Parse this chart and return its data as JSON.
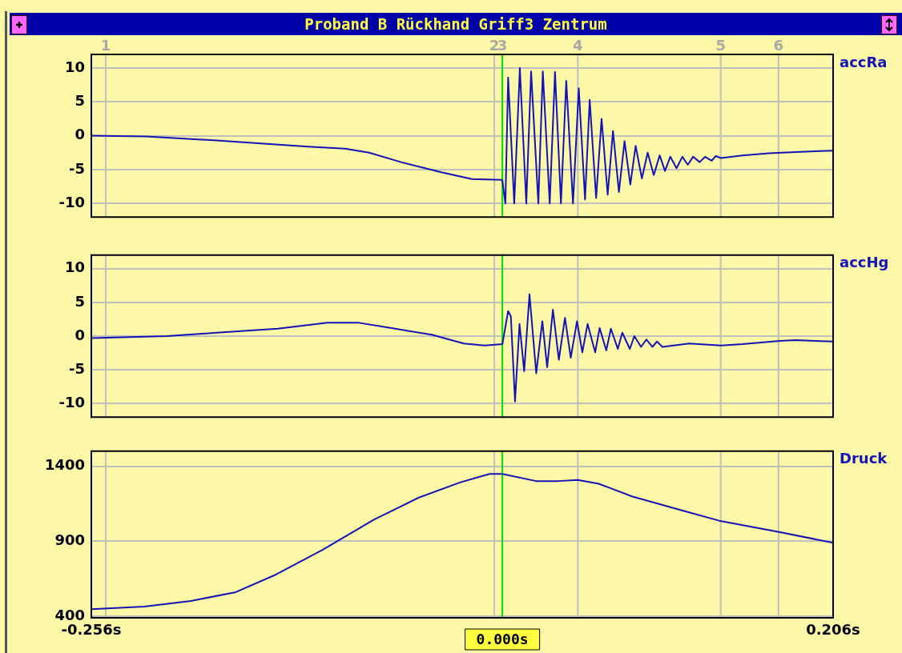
{
  "chart_data": [
    {
      "type": "line",
      "title": "Proband B Rückhand Griff3 Zentrum",
      "xlim": [
        -0.256,
        0.206
      ],
      "tick_labels": "y",
      "ylim": [
        -12,
        12
      ],
      "yticks": [
        -10,
        -5,
        0,
        5,
        10
      ],
      "grid": "y",
      "annotations": [
        "1",
        "2",
        "3",
        "4",
        "5",
        "6"
      ],
      "ref_lines": [
        {
          "axis": "x",
          "value": -0.247,
          "color": "#c0c0c0"
        },
        {
          "axis": "x",
          "value": -0.005,
          "color": "#c0c0c0"
        },
        {
          "axis": "x",
          "value": 0.0,
          "color": "#c0c0c0"
        },
        {
          "axis": "x",
          "value": 0.047,
          "color": "#c0c0c0"
        },
        {
          "axis": "x",
          "value": 0.136,
          "color": "#c0c0c0"
        },
        {
          "axis": "x",
          "value": 0.172,
          "color": "#c0c0c0"
        },
        {
          "axis": "x",
          "value": 0.0,
          "color": "#00e000"
        }
      ],
      "series": [
        {
          "name": "accRa",
          "color": "#1414b4",
          "x": [
            -0.256,
            -0.222,
            -0.178,
            -0.121,
            -0.098,
            -0.083,
            -0.063,
            -0.038,
            -0.019,
            -0.0005,
            0.0,
            0.0019,
            0.0036,
            0.0074,
            0.0109,
            0.0149,
            0.0179,
            0.0224,
            0.0252,
            0.0295,
            0.0328,
            0.0365,
            0.0398,
            0.044,
            0.0476,
            0.0515,
            0.0544,
            0.0584,
            0.0618,
            0.0656,
            0.0689,
            0.0726,
            0.0761,
            0.0797,
            0.083,
            0.0869,
            0.0905,
            0.0943,
            0.098,
            0.1013,
            0.1046,
            0.1085,
            0.1121,
            0.1155,
            0.1188,
            0.1229,
            0.1262,
            0.1304,
            0.1329,
            0.1362,
            0.1495,
            0.1662,
            0.1828,
            0.206
          ],
          "values": [
            0,
            -0.1,
            -0.7,
            -1.6,
            -1.9,
            -2.5,
            -3.9,
            -5.4,
            -6.4,
            -6.5,
            -6.6,
            -10.0,
            8.6,
            -10.0,
            10.0,
            -10.0,
            9.5,
            -10.0,
            9.5,
            -10.0,
            9.4,
            -10.0,
            8.1,
            -10.0,
            7.0,
            -9.4,
            5.3,
            -9.2,
            2.5,
            -8.7,
            0.7,
            -8.3,
            -0.8,
            -7.2,
            -1.5,
            -6.3,
            -2.5,
            -5.8,
            -2.9,
            -5.2,
            -3.1,
            -4.8,
            -3.1,
            -4.3,
            -3.1,
            -3.9,
            -3.1,
            -3.7,
            -3.0,
            -3.3,
            -2.9,
            -2.6,
            -2.4,
            -2.2
          ]
        }
      ]
    },
    {
      "type": "line",
      "xlim": [
        -0.256,
        0.206
      ],
      "tick_labels": "y",
      "ylim": [
        -12,
        12
      ],
      "yticks": [
        -10,
        -5,
        0,
        5,
        10
      ],
      "grid": "y",
      "ref_lines": [
        {
          "axis": "x",
          "value": -0.247,
          "color": "#c0c0c0"
        },
        {
          "axis": "x",
          "value": -0.005,
          "color": "#c0c0c0"
        },
        {
          "axis": "x",
          "value": 0.047,
          "color": "#c0c0c0"
        },
        {
          "axis": "x",
          "value": 0.136,
          "color": "#c0c0c0"
        },
        {
          "axis": "x",
          "value": 0.172,
          "color": "#c0c0c0"
        },
        {
          "axis": "x",
          "value": 0.0,
          "color": "#00e000"
        }
      ],
      "series": [
        {
          "name": "accHg",
          "color": "#1414b4",
          "x": [
            -0.256,
            -0.209,
            -0.178,
            -0.14,
            -0.109,
            -0.09,
            -0.072,
            -0.044,
            -0.024,
            -0.011,
            0.0,
            0.0036,
            0.0053,
            0.0079,
            0.0107,
            0.0136,
            0.0169,
            0.0211,
            0.0249,
            0.0279,
            0.0315,
            0.0352,
            0.039,
            0.0426,
            0.0465,
            0.0498,
            0.0531,
            0.0578,
            0.0606,
            0.0647,
            0.0676,
            0.0719,
            0.0747,
            0.0794,
            0.0822,
            0.0864,
            0.0897,
            0.0934,
            0.0963,
            0.0997,
            0.1163,
            0.1362,
            0.1495,
            0.1728,
            0.1828,
            0.206
          ],
          "values": [
            -0.3,
            0,
            0.5,
            1.1,
            2.0,
            2.0,
            1.3,
            0.2,
            -1.1,
            -1.4,
            -1.2,
            3.7,
            2.9,
            -9.7,
            1.8,
            -5.2,
            6.2,
            -5.5,
            2.2,
            -4.6,
            3.9,
            -3.5,
            2.7,
            -3.2,
            2.2,
            -2.4,
            1.8,
            -2.4,
            1.2,
            -2.1,
            1.1,
            -1.9,
            0.5,
            -1.9,
            0,
            -1.6,
            -0.5,
            -1.6,
            -0.8,
            -1.6,
            -1.1,
            -1.4,
            -1.2,
            -0.7,
            -0.6,
            -0.8
          ]
        }
      ]
    },
    {
      "type": "line",
      "xlim": [
        -0.256,
        0.206
      ],
      "xticks": [
        {
          "value": -0.256,
          "label": "-0.256s"
        },
        {
          "value": 0.206,
          "label": "0.206s"
        }
      ],
      "ylim": [
        390,
        1500
      ],
      "yticks": [
        400,
        900,
        1400
      ],
      "grid": "y",
      "ref_lines": [
        {
          "axis": "x",
          "value": -0.247,
          "color": "#c0c0c0"
        },
        {
          "axis": "x",
          "value": -0.005,
          "color": "#c0c0c0"
        },
        {
          "axis": "x",
          "value": 0.047,
          "color": "#c0c0c0"
        },
        {
          "axis": "x",
          "value": 0.136,
          "color": "#c0c0c0"
        },
        {
          "axis": "x",
          "value": 0.172,
          "color": "#c0c0c0"
        },
        {
          "axis": "x",
          "value": 0.0,
          "label": "0.000s",
          "color": "#00e000"
        }
      ],
      "series": [
        {
          "name": "Druck",
          "color": "#1414b4",
          "x": [
            -0.256,
            -0.223,
            -0.194,
            -0.166,
            -0.141,
            -0.112,
            -0.08,
            -0.052,
            -0.026,
            -0.008,
            0.0,
            0.021,
            0.035,
            0.047,
            0.06,
            0.081,
            0.114,
            0.135,
            0.171,
            0.206
          ],
          "values": [
            447,
            465,
            502,
            561,
            678,
            843,
            1044,
            1191,
            1293,
            1348,
            1348,
            1301,
            1301,
            1308,
            1283,
            1198,
            1099,
            1037,
            964,
            890
          ]
        }
      ]
    }
  ]
}
